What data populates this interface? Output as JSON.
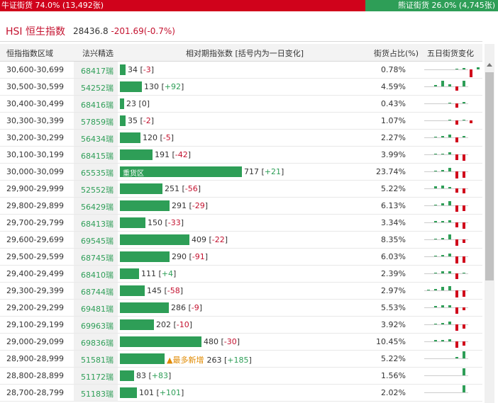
{
  "ratio": {
    "bull_label": "牛证街货 74.0% (13,492张)",
    "bear_label": "熊证街货 26.0% (4,745张)",
    "bull_pct": 74.0
  },
  "hsi": {
    "name": "HSI 恒生指数",
    "price": "28436.8",
    "change": "-201.69(-0.7%)"
  },
  "columns": {
    "range": "恒指指数区域",
    "warrant": "法兴精选",
    "relative": "相对期指张数 [括号内为一日变化]",
    "ratio": "街货占比(%)",
    "five_day": "五日街货变化"
  },
  "colors": {
    "bull": "#d0021b",
    "bear": "#2e9e57",
    "accent": "#c4122f",
    "note": "#e08a00"
  },
  "rows": [
    {
      "range": "30,600-30,699",
      "warrant": "68417瑞",
      "amount": "34",
      "delta": "-3",
      "sign": "neg",
      "ratio": "0.78%"
    },
    {
      "range": "30,500-30,599",
      "warrant": "54252瑞",
      "amount": "130",
      "delta": "+92",
      "sign": "pos",
      "ratio": "4.59%"
    },
    {
      "range": "30,400-30,499",
      "warrant": "68416瑞",
      "amount": "23",
      "delta": "0",
      "sign": "zero",
      "ratio": "0.43%"
    },
    {
      "range": "30,300-30,399",
      "warrant": "57859瑞",
      "amount": "35",
      "delta": "-2",
      "sign": "neg",
      "ratio": "1.07%"
    },
    {
      "range": "30,200-30,299",
      "warrant": "56434瑞",
      "amount": "120",
      "delta": "-5",
      "sign": "neg",
      "ratio": "2.27%"
    },
    {
      "range": "30,100-30,199",
      "warrant": "68415瑞",
      "amount": "191",
      "delta": "-42",
      "sign": "neg",
      "ratio": "3.99%"
    },
    {
      "range": "30,000-30,099",
      "warrant": "65535瑞",
      "amount": "717",
      "delta": "+21",
      "sign": "pos",
      "ratio": "23.74%",
      "tag": "重货区"
    },
    {
      "range": "29,900-29,999",
      "warrant": "52552瑞",
      "amount": "251",
      "delta": "-56",
      "sign": "neg",
      "ratio": "5.22%"
    },
    {
      "range": "29,800-29,899",
      "warrant": "56429瑞",
      "amount": "291",
      "delta": "-29",
      "sign": "neg",
      "ratio": "6.13%"
    },
    {
      "range": "29,700-29,799",
      "warrant": "68413瑞",
      "amount": "150",
      "delta": "-33",
      "sign": "neg",
      "ratio": "3.34%"
    },
    {
      "range": "29,600-29,699",
      "warrant": "69545瑞",
      "amount": "409",
      "delta": "-22",
      "sign": "neg",
      "ratio": "8.35%"
    },
    {
      "range": "29,500-29,599",
      "warrant": "68745瑞",
      "amount": "290",
      "delta": "-91",
      "sign": "neg",
      "ratio": "6.03%"
    },
    {
      "range": "29,400-29,499",
      "warrant": "68410瑞",
      "amount": "111",
      "delta": "+4",
      "sign": "pos",
      "ratio": "2.39%"
    },
    {
      "range": "29,300-29,399",
      "warrant": "68744瑞",
      "amount": "145",
      "delta": "-58",
      "sign": "neg",
      "ratio": "2.97%"
    },
    {
      "range": "29,200-29,299",
      "warrant": "69481瑞",
      "amount": "286",
      "delta": "-9",
      "sign": "neg",
      "ratio": "5.53%"
    },
    {
      "range": "29,100-29,199",
      "warrant": "69963瑞",
      "amount": "202",
      "delta": "-10",
      "sign": "neg",
      "ratio": "3.92%"
    },
    {
      "range": "29,000-29,099",
      "warrant": "69836瑞",
      "amount": "480",
      "delta": "-30",
      "sign": "neg",
      "ratio": "10.45%"
    },
    {
      "range": "28,900-28,999",
      "warrant": "51581瑞",
      "amount": "263",
      "delta": "+185",
      "sign": "pos",
      "ratio": "5.22%",
      "note": "▲最多新增"
    },
    {
      "range": "28,800-28,899",
      "warrant": "51172瑞",
      "amount": "83",
      "delta": "+83",
      "sign": "pos",
      "ratio": "1.56%"
    },
    {
      "range": "28,700-28,799",
      "warrant": "51183瑞",
      "amount": "101",
      "delta": "+101",
      "sign": "pos",
      "ratio": "2.02%"
    }
  ]
}
